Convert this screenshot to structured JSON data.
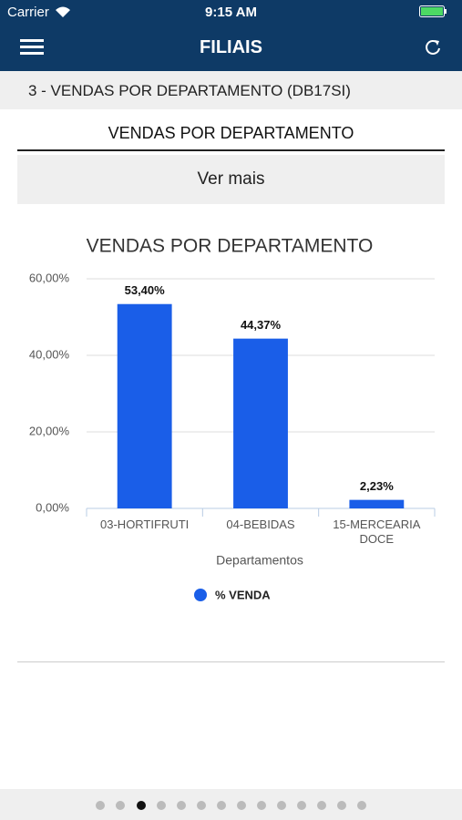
{
  "status_bar": {
    "carrier": "Carrier",
    "time": "9:15 AM"
  },
  "nav": {
    "title": "FILIAIS"
  },
  "section": {
    "title": "3 - VENDAS POR DEPARTAMENTO (DB17SI)"
  },
  "header": {
    "title": "VENDAS POR DEPARTAMENTO"
  },
  "button": {
    "label": "Ver mais"
  },
  "chart_data": {
    "type": "bar",
    "title": "VENDAS POR DEPARTAMENTO",
    "x_label": "Departamentos",
    "categories": [
      "03-HORTIFRUTI",
      "04-BEBIDAS",
      "15-MERCEARIA DOCE"
    ],
    "series": [
      {
        "name": "% VENDA",
        "color": "#1a5ee8",
        "values": [
          53.4,
          44.37,
          2.23
        ],
        "value_labels": [
          "53,40%",
          "44,37%",
          "2,23%"
        ]
      }
    ],
    "ylim": [
      0,
      60
    ],
    "yticks": [
      {
        "value": 0,
        "label": "0,00%"
      },
      {
        "value": 20,
        "label": "20,00%"
      },
      {
        "value": 40,
        "label": "40,00%"
      },
      {
        "value": 60,
        "label": "60,00%"
      }
    ],
    "grid": true,
    "legend": "bottom"
  }
}
